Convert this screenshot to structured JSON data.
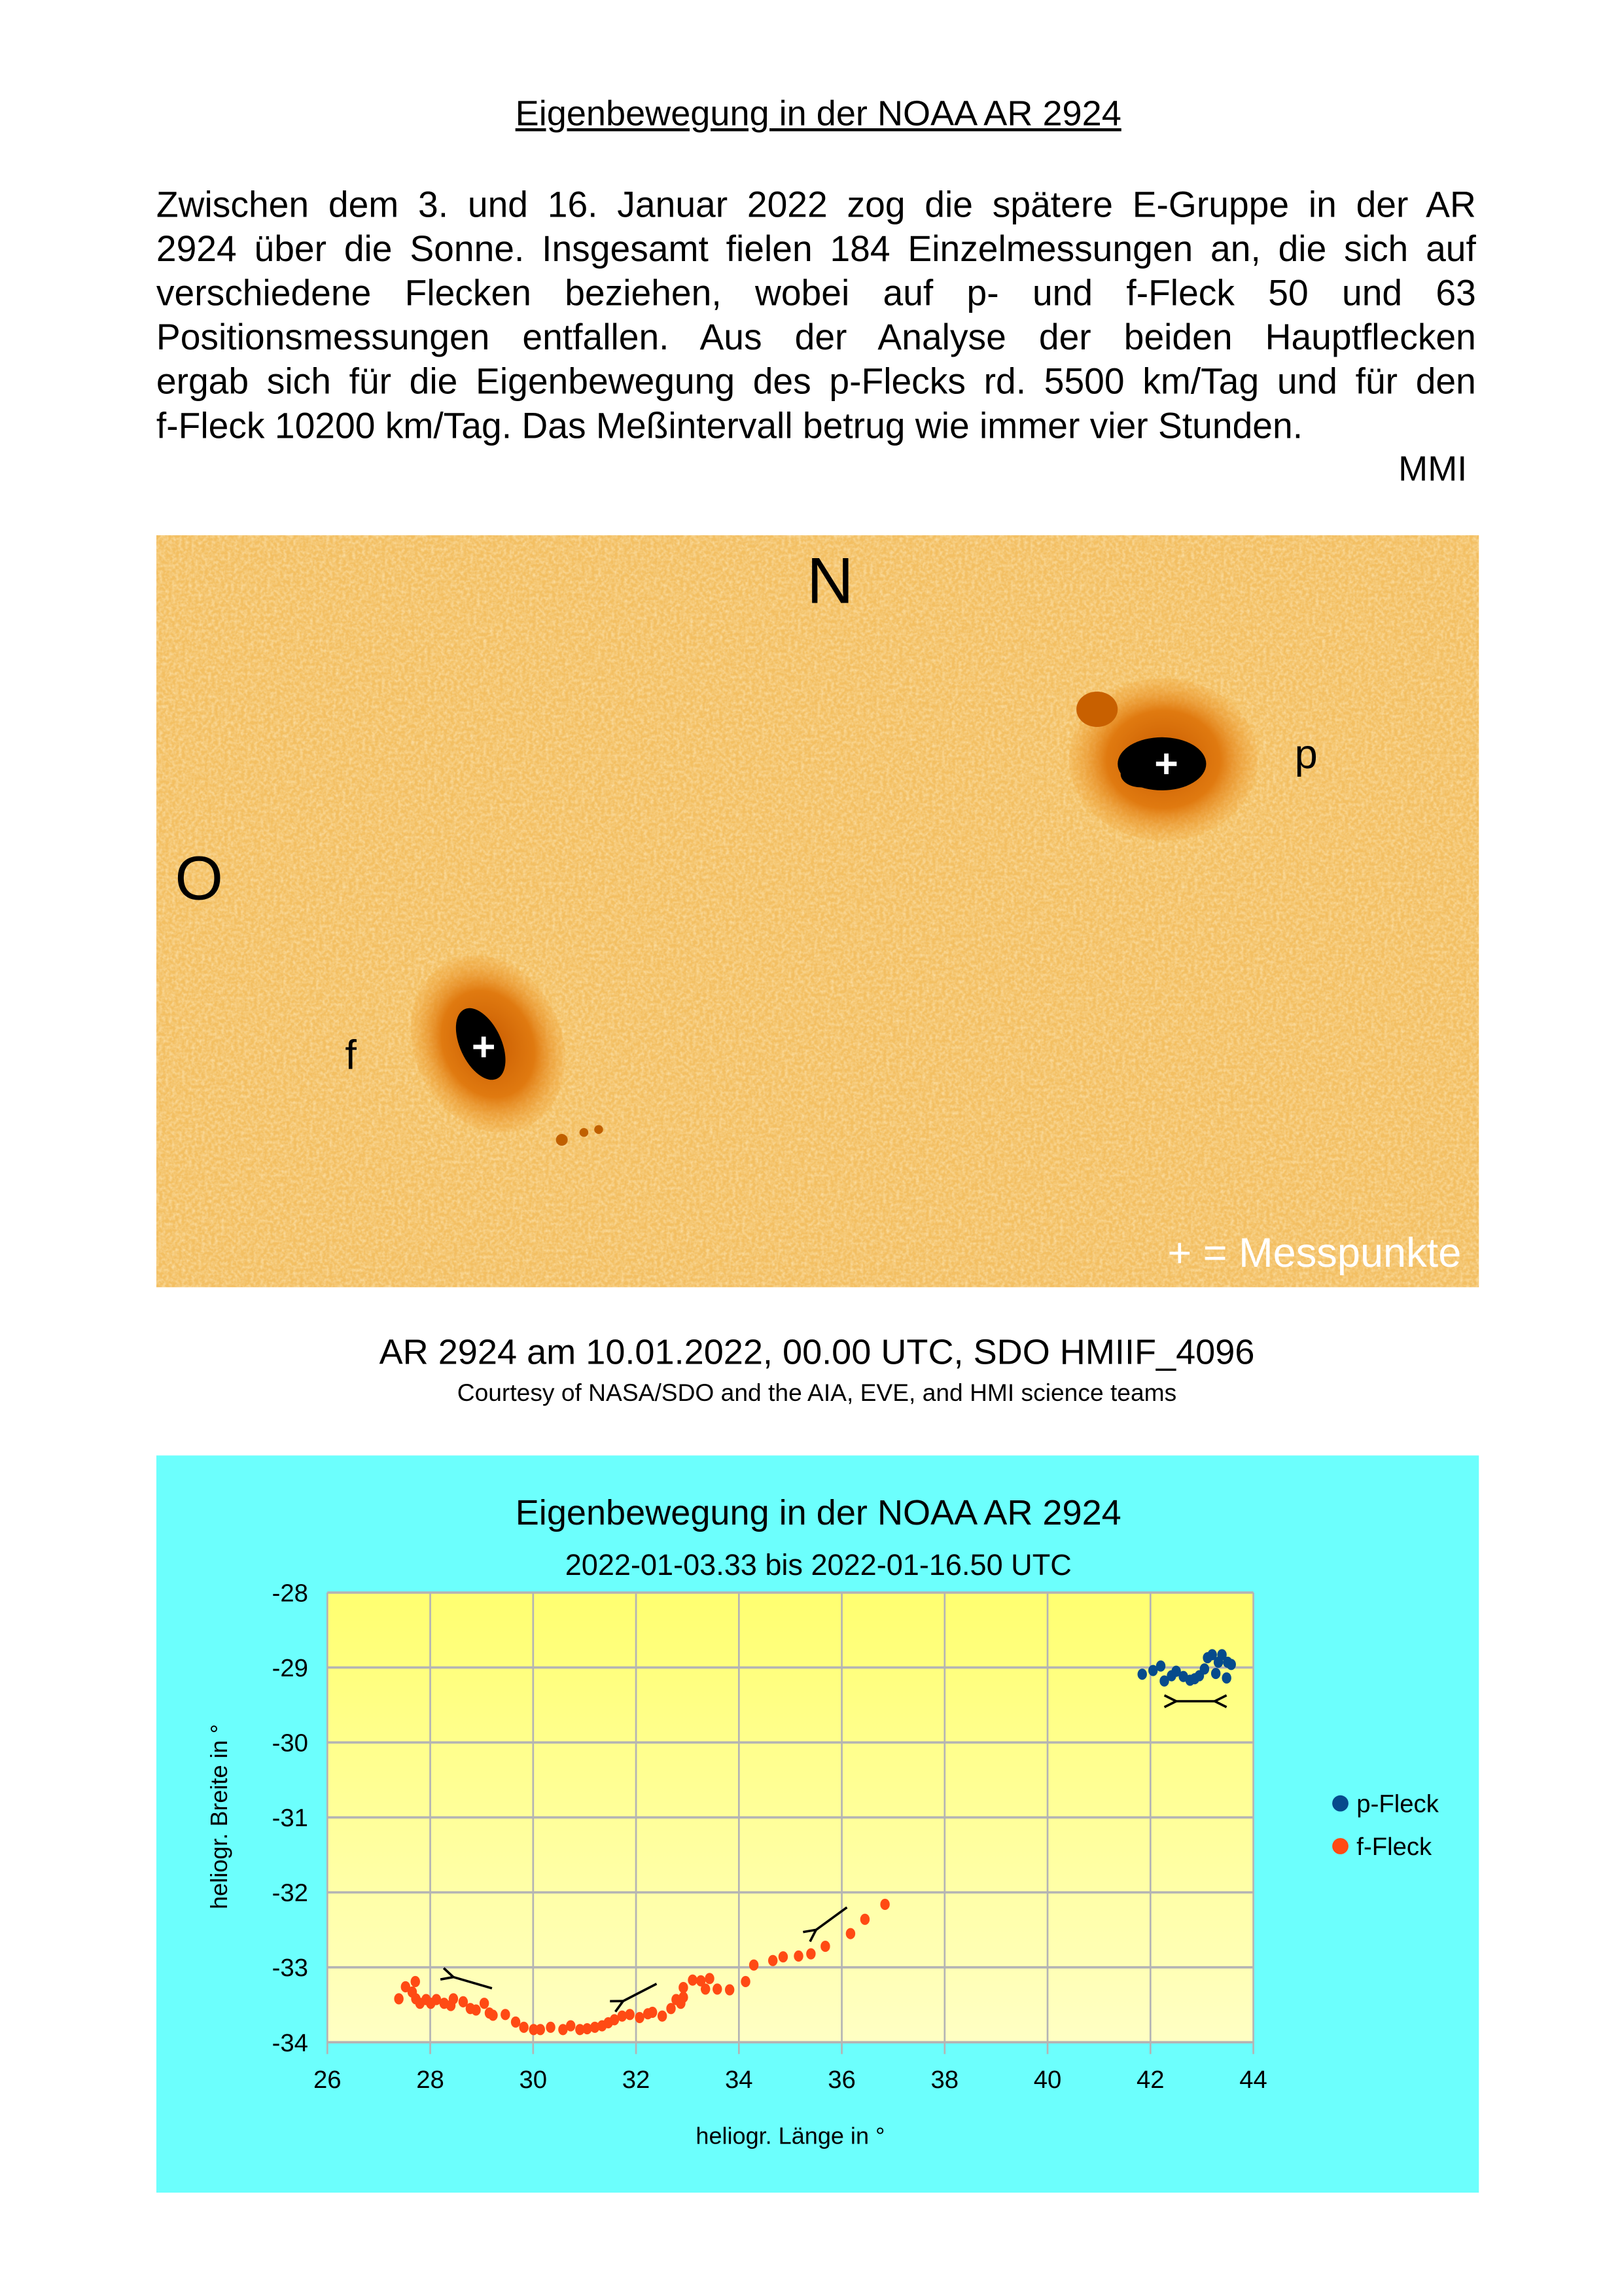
{
  "title": "Eigenbewegung in der NOAA  AR 2924",
  "paragraph": [
    "Zwischen dem 3. und 16. Januar 2022 zog die spätere E-Gruppe in der AR",
    "2924 über die Sonne. Insgesamt fielen 184 Einzelmessungen an, die sich auf",
    "verschiedene Flecken beziehen, wobei auf p- und f-Fleck 50 und 63",
    "Positionsmessungen entfallen. Aus der Analyse der beiden Hauptflecken",
    "ergab sich für die Eigenbewegung des p-Flecks rd. 5500 km/Tag und für den",
    "f-Fleck  10200 km/Tag. Das Meßintervall betrug wie immer vier Stunden."
  ],
  "signature": "MMI",
  "image": {
    "north": "N",
    "east": "O",
    "p_label": "p",
    "f_label": "f",
    "legend": "+ = Messpunkte"
  },
  "caption": "AR 2924 am 10.01.2022, 00.00 UTC, SDO HMIIF_4096",
  "credit": "Courtesy of NASA/SDO and the AIA, EVE, and HMI science teams",
  "chart_data": {
    "type": "scatter",
    "title": "Eigenbewegung in der NOAA  AR 2924",
    "subtitle": "2022-01-03.33 bis 2022-01-16.50 UTC",
    "xlabel": "heliogr. Länge in °",
    "ylabel": "heliogr. Breite in °",
    "xlim": [
      26,
      44
    ],
    "ylim": [
      -34,
      -28
    ],
    "xticks": [
      "26",
      "28",
      "30",
      "32",
      "34",
      "36",
      "38",
      "40",
      "42",
      "44"
    ],
    "yticks": [
      "-28",
      "-29",
      "-30",
      "-31",
      "-32",
      "-33",
      "-34"
    ],
    "grid": true,
    "legend_position": "right",
    "background_color": "#6cfffd",
    "plot_gradient": [
      "#ffff70",
      "#ffffc4"
    ],
    "series": [
      {
        "name": "p-Fleck",
        "color": "#064b8c",
        "points": [
          [
            41.84,
            -29.09
          ],
          [
            42.05,
            -29.04
          ],
          [
            42.2,
            -28.98
          ],
          [
            42.27,
            -29.18
          ],
          [
            42.41,
            -29.11
          ],
          [
            42.5,
            -29.05
          ],
          [
            42.64,
            -29.12
          ],
          [
            42.77,
            -29.17
          ],
          [
            42.86,
            -29.15
          ],
          [
            42.95,
            -29.11
          ],
          [
            43.05,
            -29.02
          ],
          [
            43.11,
            -28.87
          ],
          [
            43.2,
            -28.83
          ],
          [
            43.27,
            -29.08
          ],
          [
            43.32,
            -28.93
          ],
          [
            43.39,
            -28.83
          ],
          [
            43.48,
            -29.14
          ],
          [
            43.5,
            -28.93
          ],
          [
            43.57,
            -28.96
          ]
        ]
      },
      {
        "name": "f-Fleck",
        "color": "#ff4a14",
        "points": [
          [
            27.39,
            -33.42
          ],
          [
            27.52,
            -33.26
          ],
          [
            27.65,
            -33.33
          ],
          [
            27.71,
            -33.19
          ],
          [
            27.72,
            -33.42
          ],
          [
            27.8,
            -33.48
          ],
          [
            27.92,
            -33.43
          ],
          [
            28.01,
            -33.48
          ],
          [
            28.12,
            -33.43
          ],
          [
            28.27,
            -33.48
          ],
          [
            28.4,
            -33.51
          ],
          [
            28.45,
            -33.42
          ],
          [
            28.64,
            -33.46
          ],
          [
            28.78,
            -33.55
          ],
          [
            28.89,
            -33.57
          ],
          [
            29.05,
            -33.48
          ],
          [
            29.15,
            -33.61
          ],
          [
            29.22,
            -33.64
          ],
          [
            29.46,
            -33.63
          ],
          [
            29.66,
            -33.73
          ],
          [
            29.82,
            -33.8
          ],
          [
            30.01,
            -33.83
          ],
          [
            30.14,
            -33.83
          ],
          [
            30.34,
            -33.8
          ],
          [
            30.58,
            -33.83
          ],
          [
            30.73,
            -33.78
          ],
          [
            30.91,
            -33.83
          ],
          [
            31.05,
            -33.82
          ],
          [
            31.2,
            -33.8
          ],
          [
            31.34,
            -33.78
          ],
          [
            31.46,
            -33.74
          ],
          [
            31.58,
            -33.7
          ],
          [
            31.73,
            -33.65
          ],
          [
            31.88,
            -33.63
          ],
          [
            32.07,
            -33.67
          ],
          [
            32.23,
            -33.62
          ],
          [
            32.32,
            -33.6
          ],
          [
            32.51,
            -33.65
          ],
          [
            32.68,
            -33.55
          ],
          [
            32.78,
            -33.43
          ],
          [
            32.87,
            -33.48
          ],
          [
            32.92,
            -33.4
          ],
          [
            32.92,
            -33.27
          ],
          [
            33.1,
            -33.17
          ],
          [
            33.26,
            -33.18
          ],
          [
            33.35,
            -33.29
          ],
          [
            33.43,
            -33.15
          ],
          [
            33.58,
            -33.29
          ],
          [
            33.82,
            -33.3
          ],
          [
            34.13,
            -33.19
          ],
          [
            34.29,
            -32.97
          ],
          [
            34.66,
            -32.91
          ],
          [
            34.86,
            -32.86
          ],
          [
            35.16,
            -32.85
          ],
          [
            35.4,
            -32.82
          ],
          [
            35.68,
            -32.72
          ],
          [
            36.17,
            -32.55
          ],
          [
            36.45,
            -32.36
          ],
          [
            36.84,
            -32.16
          ]
        ]
      }
    ],
    "annotations": [
      {
        "type": "arrow",
        "from": [
          29.2,
          -33.28
        ],
        "to": [
          28.45,
          -33.13
        ]
      },
      {
        "type": "arrow",
        "from": [
          32.4,
          -33.22
        ],
        "to": [
          31.75,
          -33.45
        ]
      },
      {
        "type": "arrow",
        "from": [
          36.1,
          -32.2
        ],
        "to": [
          35.5,
          -32.5
        ]
      },
      {
        "type": "double-arrow",
        "from": [
          42.5,
          -29.45
        ],
        "to": [
          43.25,
          -29.45
        ]
      }
    ]
  }
}
